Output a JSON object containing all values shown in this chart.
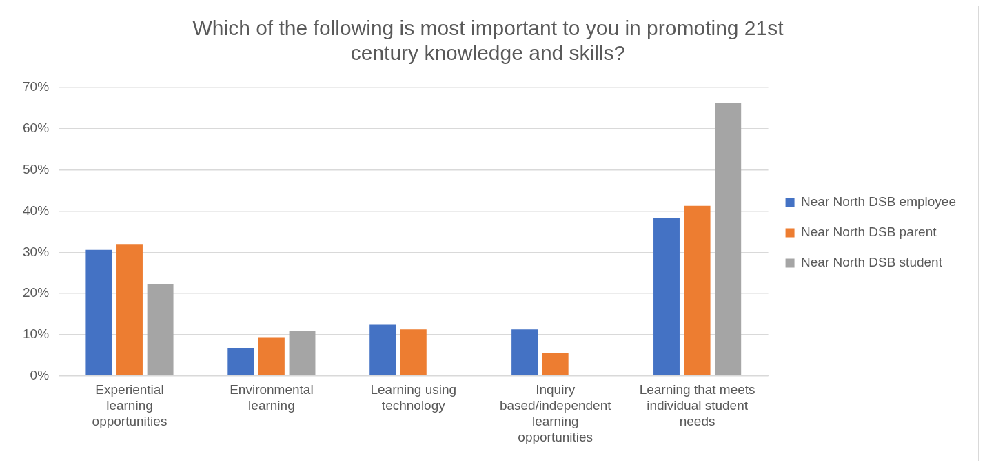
{
  "chart_data": {
    "type": "bar",
    "title": "Which of the following is most important to you in promoting 21st century knowledge and skills?",
    "categories": [
      "Experiential learning opportunities",
      "Environmental learning",
      "Learning using technology",
      "Inquiry based/independent learning opportunities",
      "Learning that meets individual student needs"
    ],
    "series": [
      {
        "name": "Near North DSB employee",
        "color": "#4472c4",
        "values": [
          30.6,
          6.8,
          12.4,
          11.3,
          38.4
        ]
      },
      {
        "name": "Near North DSB parent",
        "color": "#ed7d31",
        "values": [
          32.0,
          9.4,
          11.3,
          5.6,
          41.3
        ]
      },
      {
        "name": "Near North DSB student",
        "color": "#a5a5a5",
        "values": [
          22.2,
          11.0,
          null,
          null,
          66.2
        ]
      }
    ],
    "ylim": [
      0,
      70
    ],
    "yticks": [
      {
        "value": 0,
        "label": "0%"
      },
      {
        "value": 10,
        "label": "10%"
      },
      {
        "value": 20,
        "label": "20%"
      },
      {
        "value": 30,
        "label": "30%"
      },
      {
        "value": 40,
        "label": "40%"
      },
      {
        "value": 50,
        "label": "50%"
      },
      {
        "value": 60,
        "label": "60%"
      },
      {
        "value": 70,
        "label": "70%"
      }
    ],
    "grid": "y",
    "legend": "right"
  }
}
